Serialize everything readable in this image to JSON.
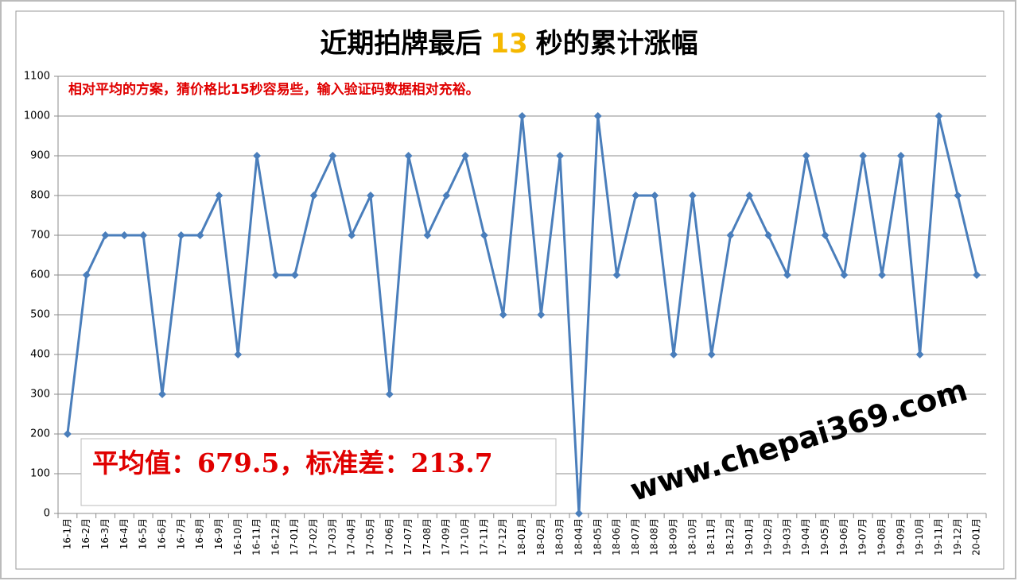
{
  "chart_data": {
    "type": "line",
    "title_parts": [
      "近期拍牌最后",
      "13",
      "秒的累计涨幅"
    ],
    "annotation": "相对平均的方案，猜价格比15秒容易些，输入验证码数据相对充裕。",
    "stats_box": "平均值：679.5，标准差：213.7",
    "watermark": "www.chepai369.com",
    "categories": [
      "16-1月",
      "16-2月",
      "16-3月",
      "16-4月",
      "16-5月",
      "16-6月",
      "16-7月",
      "16-8月",
      "16-9月",
      "16-10月",
      "16-11月",
      "16-12月",
      "17-01月",
      "17-02月",
      "17-03月",
      "17-04月",
      "17-05月",
      "17-06月",
      "17-07月",
      "17-08月",
      "17-09月",
      "17-10月",
      "17-11月",
      "17-12月",
      "18-01月",
      "18-02月",
      "18-03月",
      "18-04月",
      "18-05月",
      "18-06月",
      "18-07月",
      "18-08月",
      "18-09月",
      "18-10月",
      "18-11月",
      "18-12月",
      "19-01月",
      "19-02月",
      "19-03月",
      "19-04月",
      "19-05月",
      "19-06月",
      "19-07月",
      "19-08月",
      "19-09月",
      "19-10月",
      "19-11月",
      "19-12月",
      "20-01月"
    ],
    "values": [
      200,
      600,
      700,
      700,
      700,
      300,
      700,
      700,
      800,
      400,
      900,
      600,
      600,
      800,
      900,
      700,
      800,
      300,
      900,
      700,
      800,
      900,
      700,
      500,
      1000,
      500,
      900,
      0,
      1000,
      600,
      800,
      800,
      400,
      800,
      400,
      700,
      800,
      700,
      600,
      900,
      700,
      600,
      900,
      600,
      900,
      400,
      1000,
      800,
      600
    ],
    "color": "#4a7ebb",
    "ylim": [
      0,
      1100
    ],
    "yticks": [
      0,
      100,
      200,
      300,
      400,
      500,
      600,
      700,
      800,
      900,
      1000,
      1100
    ],
    "grid": true
  }
}
